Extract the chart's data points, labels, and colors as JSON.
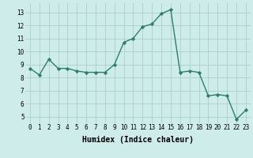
{
  "x": [
    0,
    1,
    2,
    3,
    4,
    5,
    6,
    7,
    8,
    9,
    10,
    11,
    12,
    13,
    14,
    15,
    16,
    17,
    18,
    19,
    20,
    21,
    22,
    23
  ],
  "y": [
    8.7,
    8.2,
    9.4,
    8.7,
    8.7,
    8.5,
    8.4,
    8.4,
    8.4,
    9.0,
    10.7,
    11.0,
    11.9,
    12.1,
    12.9,
    13.2,
    8.4,
    8.5,
    8.4,
    6.6,
    6.7,
    6.6,
    4.8,
    5.5
  ],
  "line_color": "#2e7d6e",
  "marker": "D",
  "markersize": 2.2,
  "linewidth": 1.0,
  "background_color": "#ceecea",
  "grid_color": "#aacfcd",
  "xlabel": "Humidex (Indice chaleur)",
  "xlabel_fontsize": 7,
  "tick_fontsize": 5.5,
  "ylabel_ticks": [
    5,
    6,
    7,
    8,
    9,
    10,
    11,
    12,
    13
  ],
  "xlim": [
    -0.5,
    23.5
  ],
  "ylim": [
    4.5,
    13.7
  ]
}
